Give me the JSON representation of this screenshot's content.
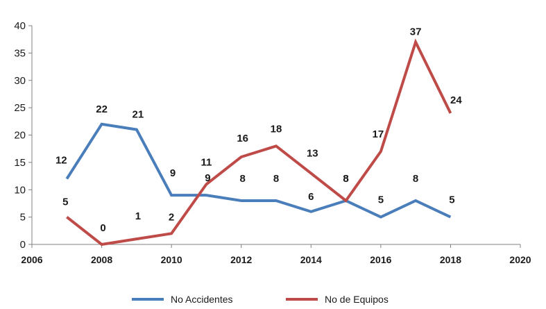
{
  "chart_data": {
    "type": "line",
    "x": [
      2007,
      2008,
      2009,
      2010,
      2011,
      2012,
      2013,
      2014,
      2015,
      2016,
      2017,
      2018
    ],
    "series": [
      {
        "name": "No Accidentes",
        "color": "#4a7ebb",
        "values": [
          12,
          22,
          21,
          9,
          9,
          8,
          8,
          6,
          8,
          5,
          8,
          5
        ]
      },
      {
        "name": "No de Equipos",
        "color": "#be4b48",
        "values": [
          5,
          0,
          1,
          2,
          11,
          16,
          18,
          13,
          8,
          17,
          37,
          24
        ]
      }
    ],
    "xlim": [
      2006,
      2020
    ],
    "ylim": [
      0,
      40
    ],
    "xticks": [
      "2006",
      "2008",
      "2010",
      "2012",
      "2014",
      "2016",
      "2018",
      "2020"
    ],
    "yticks": [
      "0",
      "5",
      "10",
      "15",
      "20",
      "25",
      "30",
      "35",
      "40"
    ],
    "data_labels": {
      "No Accidentes": [
        "12",
        "22",
        "21",
        "9",
        "9",
        "8",
        "8",
        "6",
        "8",
        "5",
        "8",
        "5"
      ],
      "No de Equipos": [
        "5",
        "0",
        "1",
        "2",
        "11",
        "16",
        "18",
        "13",
        "8",
        "17",
        "37",
        "24"
      ]
    },
    "grid": false,
    "legend": "bottom"
  }
}
